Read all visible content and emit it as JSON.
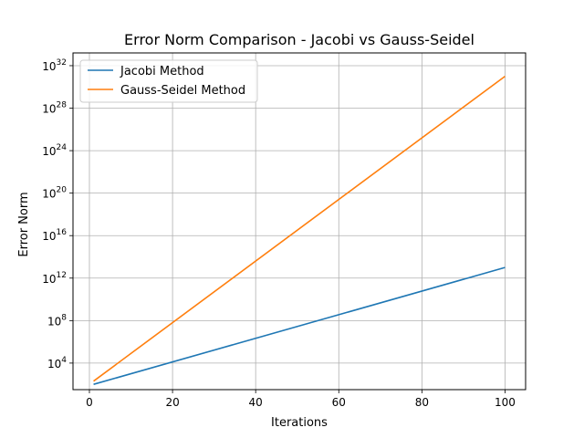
{
  "chart_data": {
    "type": "line",
    "title": "Error Norm Comparison - Jacobi vs Gauss-Seidel",
    "xlabel": "Iterations",
    "ylabel": "Error Norm",
    "xlim": [
      -3.95,
      104.95
    ],
    "ylim_log10": [
      1.5,
      33.2
    ],
    "yscale": "log",
    "grid": true,
    "legend_position": "upper-left",
    "x_ticks": [
      0,
      20,
      40,
      60,
      80,
      100
    ],
    "y_ticks": [
      {
        "exp": 4,
        "base": "10",
        "sup": "4"
      },
      {
        "exp": 8,
        "base": "10",
        "sup": "8"
      },
      {
        "exp": 12,
        "base": "10",
        "sup": "12"
      },
      {
        "exp": 16,
        "base": "10",
        "sup": "16"
      },
      {
        "exp": 20,
        "base": "10",
        "sup": "20"
      },
      {
        "exp": 24,
        "base": "10",
        "sup": "24"
      },
      {
        "exp": 28,
        "base": "10",
        "sup": "28"
      },
      {
        "exp": 32,
        "base": "10",
        "sup": "32"
      }
    ],
    "series": [
      {
        "name": "Jacobi Method",
        "color": "#1f77b4",
        "x": [
          1,
          100
        ],
        "y": [
          100,
          10000000000000.0
        ]
      },
      {
        "name": "Gauss-Seidel Method",
        "color": "#ff7f0e",
        "x": [
          1,
          100
        ],
        "y": [
          200,
          1e+31
        ]
      }
    ]
  }
}
